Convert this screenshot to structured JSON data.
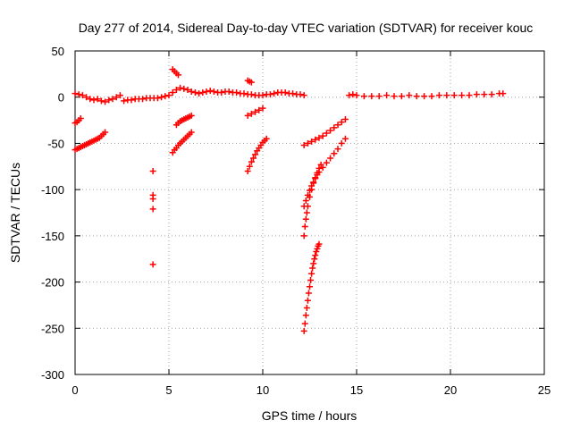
{
  "chart_data": {
    "type": "scatter",
    "title": "Day 277 of 2014, Sidereal Day-to-day VTEC variation (SDTVAR) for receiver kouc",
    "xlabel": "GPS time / hours",
    "ylabel": "SDTVAR / TECUs",
    "xlim": [
      0,
      25
    ],
    "ylim": [
      -300,
      50
    ],
    "xticks": [
      0,
      5,
      10,
      15,
      20,
      25
    ],
    "yticks": [
      50,
      0,
      -50,
      -100,
      -150,
      -200,
      -250,
      -300
    ],
    "grid": true,
    "marker": "+",
    "color": "#ff0000",
    "series": [
      {
        "name": "seg-baseline-early",
        "x": [
          0.0,
          0.2,
          0.4,
          0.6,
          0.8,
          1.0,
          1.2,
          1.4,
          1.6,
          1.8,
          2.0,
          2.2,
          2.4,
          2.6,
          2.8,
          3.0,
          3.2,
          3.4,
          3.6,
          3.8,
          4.0,
          4.2,
          4.4,
          4.6,
          4.8
        ],
        "y": [
          4,
          3,
          2,
          0,
          -2,
          -3,
          -2,
          -4,
          -5,
          -3,
          -2,
          0,
          2,
          -4,
          -3,
          -3,
          -2,
          -2,
          -2,
          -1,
          -1,
          -1,
          -1,
          0,
          1
        ]
      },
      {
        "name": "seg-baseline-mid",
        "x": [
          5.0,
          5.2,
          5.4,
          5.6,
          5.8,
          6.0,
          6.2,
          6.4,
          6.6,
          6.8,
          7.0,
          7.2,
          7.4,
          7.6,
          7.8,
          8.0,
          8.2,
          8.4,
          8.6,
          8.8,
          9.0,
          9.2,
          9.4,
          9.6,
          9.8,
          10.0,
          10.2,
          10.4,
          10.6,
          10.8,
          11.0,
          11.2,
          11.4,
          11.6,
          11.8,
          12.0,
          12.2
        ],
        "y": [
          2,
          5,
          8,
          10,
          9,
          8,
          6,
          5,
          4,
          5,
          6,
          7,
          6,
          5,
          5,
          6,
          6,
          5,
          5,
          4,
          4,
          3,
          3,
          2,
          2,
          2,
          3,
          3,
          4,
          5,
          5,
          5,
          4,
          4,
          3,
          3,
          2
        ]
      },
      {
        "name": "seg-baseline-late",
        "x": [
          14.6,
          14.8,
          15.0,
          15.4,
          15.8,
          16.2,
          16.6,
          17.0,
          17.4,
          17.8,
          18.2,
          18.6,
          19.0,
          19.4,
          19.8,
          20.2,
          20.6,
          21.0,
          21.4,
          21.8,
          22.2,
          22.6,
          22.8
        ],
        "y": [
          2,
          3,
          2,
          1,
          1,
          1,
          2,
          1,
          1,
          2,
          1,
          1,
          1,
          2,
          2,
          2,
          2,
          2,
          3,
          3,
          3,
          4,
          4
        ]
      },
      {
        "name": "seg-early-lower",
        "x": [
          0.0,
          0.1,
          0.2,
          0.3,
          0.4,
          0.5,
          0.6,
          0.7,
          0.8,
          0.9,
          1.0,
          1.1,
          1.2,
          1.3,
          1.4,
          1.5,
          1.6
        ],
        "y": [
          -57,
          -56,
          -55,
          -54,
          -53,
          -52,
          -51,
          -50,
          -49,
          -48,
          -47,
          -46,
          -45,
          -44,
          -42,
          -40,
          -38
        ]
      },
      {
        "name": "seg-early-short",
        "x": [
          0.0,
          0.1,
          0.2,
          0.3
        ],
        "y": [
          -28,
          -27,
          -25,
          -23
        ]
      },
      {
        "name": "seg-outliers-4h",
        "x": [
          4.15,
          4.15,
          4.15,
          4.15,
          4.15
        ],
        "y": [
          -80,
          -106,
          -110,
          -121,
          -181
        ]
      },
      {
        "name": "seg-5h-upper",
        "x": [
          5.2,
          5.3,
          5.4,
          5.5
        ],
        "y": [
          30,
          28,
          26,
          24
        ]
      },
      {
        "name": "seg-5h-mid",
        "x": [
          5.4,
          5.5,
          5.6,
          5.7,
          5.8,
          5.9,
          6.0,
          6.1,
          6.2
        ],
        "y": [
          -30,
          -28,
          -26,
          -25,
          -24,
          -23,
          -22,
          -21,
          -20
        ]
      },
      {
        "name": "seg-5h-lower",
        "x": [
          5.2,
          5.3,
          5.4,
          5.5,
          5.6,
          5.7,
          5.8,
          5.9,
          6.0,
          6.1,
          6.2
        ],
        "y": [
          -60,
          -57,
          -55,
          -52,
          -50,
          -48,
          -46,
          -44,
          -42,
          -40,
          -38
        ]
      },
      {
        "name": "seg-9h-upper",
        "x": [
          9.2,
          9.3,
          9.4
        ],
        "y": [
          18,
          17,
          16
        ]
      },
      {
        "name": "seg-9h-mid",
        "x": [
          9.2,
          9.4,
          9.6,
          9.8,
          10.0
        ],
        "y": [
          -20,
          -18,
          -16,
          -14,
          -12
        ]
      },
      {
        "name": "seg-9h-lower",
        "x": [
          9.2,
          9.3,
          9.4,
          9.5,
          9.6,
          9.7,
          9.8,
          9.9,
          10.0,
          10.1,
          10.2
        ],
        "y": [
          -80,
          -75,
          -70,
          -66,
          -62,
          -58,
          -55,
          -52,
          -49,
          -47,
          -45
        ]
      },
      {
        "name": "seg-12h-upper",
        "x": [
          12.2,
          12.4,
          12.6,
          12.8,
          13.0,
          13.2,
          13.4,
          13.6,
          13.8,
          14.0,
          14.2,
          14.4
        ],
        "y": [
          -52,
          -50,
          -48,
          -46,
          -44,
          -42,
          -39,
          -36,
          -33,
          -30,
          -27,
          -24
        ]
      },
      {
        "name": "seg-12h-steep",
        "x": [
          12.2,
          12.3,
          12.4,
          12.5,
          12.6,
          12.7,
          12.8,
          12.9,
          13.0,
          13.2,
          13.4,
          13.6,
          13.8,
          14.0,
          14.2,
          14.4
        ],
        "y": [
          -118,
          -112,
          -106,
          -101,
          -96,
          -92,
          -88,
          -84,
          -81,
          -76,
          -71,
          -66,
          -61,
          -56,
          -50,
          -45
        ]
      },
      {
        "name": "seg-12h-mid",
        "x": [
          12.2,
          12.25,
          12.3,
          12.35,
          12.4,
          12.5,
          12.6,
          12.7,
          12.8,
          12.9,
          13.0,
          13.1
        ],
        "y": [
          -150,
          -140,
          -132,
          -125,
          -118,
          -108,
          -100,
          -93,
          -87,
          -82,
          -77,
          -73
        ]
      },
      {
        "name": "seg-12h-deep",
        "x": [
          12.2,
          12.25,
          12.3,
          12.35,
          12.4,
          12.45,
          12.5,
          12.55,
          12.6,
          12.65,
          12.7,
          12.75,
          12.8,
          12.85,
          12.9,
          12.95,
          13.0
        ],
        "y": [
          -253,
          -245,
          -236,
          -228,
          -220,
          -212,
          -205,
          -198,
          -191,
          -185,
          -180,
          -175,
          -171,
          -167,
          -164,
          -161,
          -159
        ]
      }
    ]
  }
}
